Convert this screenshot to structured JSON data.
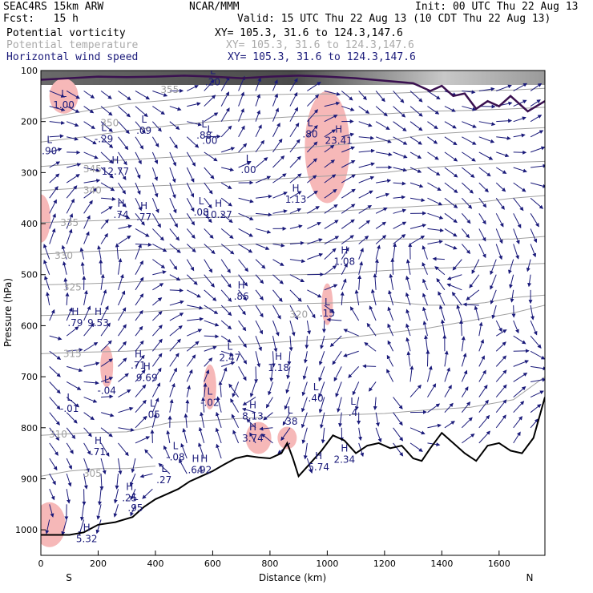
{
  "header": {
    "line1_left": "SEAC4RS 15km ARW",
    "line1_center": "NCAR/MMM",
    "line1_right": "Init: 00 UTC Thu 22 Aug 13",
    "line2_left": "Fcst:   15 h",
    "line2_right": "Valid: 15 UTC Thu 22 Aug 13 (10 CDT Thu 22 Aug 13)",
    "fields": [
      {
        "name": "Potential vorticity",
        "xy": "XY= 105.3, 31.6 to 124.3,147.6",
        "color": "#000000"
      },
      {
        "name": "Potential temperature",
        "xy": "XY= 105.3, 31.6 to 124.3,147.6",
        "color": "#aaaaaa"
      },
      {
        "name": "Horizontal wind speed",
        "xy": "XY= 105.3, 31.6 to 124.3,147.6",
        "color": "#1a1a7a"
      }
    ]
  },
  "chart_data": {
    "type": "cross-section",
    "xlabel": "Distance (km)",
    "ylabel": "Pressure (hPa)",
    "xlim": [
      0,
      1760
    ],
    "ylim": [
      1050,
      100
    ],
    "x_ticks": [
      0,
      200,
      400,
      600,
      800,
      1000,
      1200,
      1400,
      1600
    ],
    "y_ticks": [
      100,
      200,
      300,
      400,
      500,
      600,
      700,
      800,
      900,
      1000
    ],
    "end_labels": {
      "left": "S",
      "right": "N"
    },
    "grid": false,
    "colors": {
      "terrain": "#000000",
      "theta": "#a0a0a0",
      "wind": "#1a1a7a",
      "pv_fill": "#f6b8b8",
      "tropopause": "#3a1050"
    },
    "terrain": [
      [
        0,
        1010
      ],
      [
        100,
        1010
      ],
      [
        150,
        1005
      ],
      [
        200,
        990
      ],
      [
        260,
        985
      ],
      [
        320,
        975
      ],
      [
        360,
        955
      ],
      [
        400,
        940
      ],
      [
        440,
        930
      ],
      [
        480,
        920
      ],
      [
        520,
        905
      ],
      [
        560,
        895
      ],
      [
        600,
        885
      ],
      [
        640,
        872
      ],
      [
        680,
        860
      ],
      [
        720,
        855
      ],
      [
        760,
        858
      ],
      [
        800,
        860
      ],
      [
        840,
        850
      ],
      [
        860,
        830
      ],
      [
        880,
        860
      ],
      [
        900,
        895
      ],
      [
        940,
        870
      ],
      [
        980,
        845
      ],
      [
        1020,
        815
      ],
      [
        1060,
        825
      ],
      [
        1100,
        850
      ],
      [
        1140,
        835
      ],
      [
        1180,
        830
      ],
      [
        1220,
        840
      ],
      [
        1260,
        835
      ],
      [
        1300,
        860
      ],
      [
        1330,
        865
      ],
      [
        1360,
        840
      ],
      [
        1400,
        810
      ],
      [
        1440,
        830
      ],
      [
        1480,
        850
      ],
      [
        1520,
        865
      ],
      [
        1560,
        835
      ],
      [
        1600,
        830
      ],
      [
        1640,
        845
      ],
      [
        1680,
        850
      ],
      [
        1720,
        820
      ],
      [
        1760,
        740
      ]
    ],
    "theta_contours": [
      {
        "label": "305",
        "points": [
          [
            0,
            895
          ],
          [
            100,
            885
          ],
          [
            200,
            880
          ],
          [
            300,
            880
          ],
          [
            400,
            875
          ]
        ]
      },
      {
        "label": "310",
        "points": [
          [
            0,
            815
          ],
          [
            150,
            810
          ],
          [
            300,
            808
          ],
          [
            450,
            790
          ],
          [
            600,
            785
          ],
          [
            750,
            780
          ],
          [
            900,
            778
          ],
          [
            1050,
            775
          ],
          [
            1200,
            772
          ],
          [
            1350,
            765
          ],
          [
            1500,
            760
          ],
          [
            1650,
            745
          ],
          [
            1760,
            700
          ]
        ]
      },
      {
        "label": "315",
        "points": [
          [
            0,
            655
          ],
          [
            150,
            652
          ],
          [
            300,
            650
          ],
          [
            450,
            645
          ],
          [
            600,
            640
          ],
          [
            750,
            635
          ],
          [
            900,
            630
          ],
          [
            1050,
            625
          ],
          [
            1200,
            615
          ],
          [
            1350,
            605
          ],
          [
            1500,
            590
          ],
          [
            1650,
            575
          ],
          [
            1760,
            560
          ]
        ]
      },
      {
        "label": "320",
        "points": [
          [
            0,
            580
          ],
          [
            150,
            578
          ],
          [
            300,
            575
          ],
          [
            450,
            570
          ],
          [
            600,
            565
          ],
          [
            750,
            560
          ],
          [
            900,
            557
          ],
          [
            1050,
            555
          ],
          [
            1200,
            552
          ],
          [
            1350,
            560
          ],
          [
            1450,
            560
          ],
          [
            1550,
            555
          ],
          [
            1650,
            545
          ],
          [
            1760,
            540
          ]
        ]
      },
      {
        "label": "325",
        "points": [
          [
            0,
            520
          ],
          [
            150,
            518
          ],
          [
            300,
            515
          ],
          [
            450,
            510
          ],
          [
            600,
            505
          ],
          [
            750,
            502
          ],
          [
            900,
            500
          ],
          [
            1050,
            498
          ],
          [
            1200,
            492
          ],
          [
            1350,
            488
          ],
          [
            1500,
            485
          ],
          [
            1650,
            480
          ],
          [
            1760,
            478
          ]
        ]
      },
      {
        "label": "330",
        "points": [
          [
            0,
            460
          ],
          [
            150,
            455
          ],
          [
            300,
            452
          ],
          [
            450,
            450
          ],
          [
            600,
            445
          ],
          [
            750,
            440
          ],
          [
            900,
            438
          ],
          [
            1050,
            436
          ],
          [
            1200,
            430
          ],
          [
            1350,
            430
          ],
          [
            1500,
            432
          ],
          [
            1650,
            430
          ],
          [
            1760,
            425
          ]
        ]
      },
      {
        "label": "335",
        "points": [
          [
            0,
            398
          ],
          [
            150,
            395
          ],
          [
            300,
            392
          ],
          [
            450,
            390
          ],
          [
            600,
            388
          ],
          [
            750,
            385
          ],
          [
            900,
            380
          ],
          [
            1050,
            375
          ],
          [
            1200,
            370
          ],
          [
            1350,
            365
          ],
          [
            1500,
            360
          ],
          [
            1650,
            350
          ],
          [
            1760,
            345
          ]
        ]
      },
      {
        "label": "340",
        "points": [
          [
            0,
            335
          ],
          [
            150,
            330
          ],
          [
            300,
            328
          ],
          [
            450,
            325
          ],
          [
            600,
            320
          ],
          [
            750,
            315
          ],
          [
            900,
            310
          ],
          [
            1050,
            305
          ],
          [
            1200,
            300
          ],
          [
            1350,
            290
          ],
          [
            1500,
            285
          ],
          [
            1650,
            280
          ],
          [
            1760,
            278
          ]
        ]
      },
      {
        "label": "345",
        "points": [
          [
            0,
            288
          ],
          [
            150,
            282
          ],
          [
            300,
            275
          ],
          [
            450,
            270
          ],
          [
            600,
            265
          ],
          [
            750,
            258
          ],
          [
            900,
            252
          ],
          [
            1050,
            245
          ],
          [
            1200,
            238
          ],
          [
            1350,
            225
          ],
          [
            1500,
            220
          ],
          [
            1650,
            215
          ],
          [
            1760,
            212
          ]
        ]
      },
      {
        "label": "350",
        "points": [
          [
            0,
            240
          ],
          [
            150,
            230
          ],
          [
            300,
            218
          ],
          [
            450,
            208
          ],
          [
            600,
            200
          ],
          [
            750,
            195
          ],
          [
            900,
            190
          ],
          [
            1050,
            188
          ],
          [
            1200,
            185
          ],
          [
            1350,
            180
          ],
          [
            1500,
            178
          ],
          [
            1650,
            175
          ],
          [
            1760,
            172
          ]
        ]
      },
      {
        "label": "355",
        "points": [
          [
            0,
            195
          ],
          [
            150,
            180
          ],
          [
            300,
            165
          ],
          [
            450,
            158
          ],
          [
            600,
            150
          ],
          [
            750,
            148
          ],
          [
            900,
            146
          ],
          [
            1050,
            146
          ],
          [
            1200,
            145
          ],
          [
            1350,
            142
          ],
          [
            1500,
            140
          ],
          [
            1650,
            138
          ],
          [
            1760,
            135
          ]
        ]
      }
    ],
    "tropopause": [
      [
        0,
        118
      ],
      [
        100,
        115
      ],
      [
        200,
        112
      ],
      [
        300,
        113
      ],
      [
        400,
        112
      ],
      [
        500,
        110
      ],
      [
        600,
        112
      ],
      [
        700,
        115
      ],
      [
        800,
        112
      ],
      [
        900,
        110
      ],
      [
        1000,
        112
      ],
      [
        1100,
        115
      ],
      [
        1200,
        120
      ],
      [
        1300,
        125
      ],
      [
        1360,
        140
      ],
      [
        1400,
        130
      ],
      [
        1440,
        150
      ],
      [
        1480,
        145
      ],
      [
        1520,
        175
      ],
      [
        1560,
        160
      ],
      [
        1600,
        170
      ],
      [
        1640,
        150
      ],
      [
        1700,
        180
      ],
      [
        1760,
        160
      ]
    ],
    "highs_lows": [
      {
        "type": "L",
        "value": "1.00",
        "x": 80,
        "p": 155
      },
      {
        "type": "L",
        "value": ".90",
        "x": 30,
        "p": 245
      },
      {
        "type": "L",
        "value": "-.29",
        "x": 220,
        "p": 222
      },
      {
        "type": "L",
        "value": ".09",
        "x": 360,
        "p": 205
      },
      {
        "type": "L",
        "value": ".20",
        "x": 600,
        "p": 110
      },
      {
        "type": "L",
        "value": ".88",
        "x": 570,
        "p": 215
      },
      {
        "type": "L",
        "value": ".00",
        "x": 590,
        "p": 225
      },
      {
        "type": "L",
        "value": ".00",
        "x": 725,
        "p": 282
      },
      {
        "type": "L",
        "value": ".80",
        "x": 940,
        "p": 212
      },
      {
        "type": "L",
        "value": ".08",
        "x": 560,
        "p": 365
      },
      {
        "type": "L",
        "value": ".15",
        "x": 1000,
        "p": 563
      },
      {
        "type": "L",
        "value": "2.47",
        "x": 660,
        "p": 650
      },
      {
        "type": "L",
        "value": ".40",
        "x": 960,
        "p": 730
      },
      {
        "type": "L",
        "value": ".38",
        "x": 870,
        "p": 775
      },
      {
        "type": "L",
        "value": "-.04",
        "x": 230,
        "p": 715
      },
      {
        "type": "L",
        "value": "-.01",
        "x": 100,
        "p": 750
      },
      {
        "type": "L",
        "value": ".05",
        "x": 390,
        "p": 762
      },
      {
        "type": "L",
        "value": "-.02",
        "x": 590,
        "p": 738
      },
      {
        "type": "L",
        "value": "-.08",
        "x": 470,
        "p": 845
      },
      {
        "type": "L",
        "value": ".27",
        "x": 430,
        "p": 890
      },
      {
        "type": "L",
        "value": ".95",
        "x": 330,
        "p": 945
      },
      {
        "type": "L",
        "value": ".4",
        "x": 1090,
        "p": 758
      },
      {
        "type": "H",
        "value": "12.77",
        "x": 260,
        "p": 285
      },
      {
        "type": "H",
        "value": "23.41",
        "x": 1040,
        "p": 225
      },
      {
        "type": "H",
        "value": "1.13",
        "x": 890,
        "p": 340
      },
      {
        "type": "H",
        "value": ".74",
        "x": 280,
        "p": 370
      },
      {
        "type": "H",
        "value": ".77",
        "x": 360,
        "p": 375
      },
      {
        "type": "H",
        "value": "10.27",
        "x": 620,
        "p": 370
      },
      {
        "type": "H",
        "value": "1.08",
        "x": 1060,
        "p": 462
      },
      {
        "type": "H",
        "value": ".86",
        "x": 700,
        "p": 530
      },
      {
        "type": "H",
        "value": ".79",
        "x": 120,
        "p": 582
      },
      {
        "type": "H",
        "value": "9.53",
        "x": 200,
        "p": 582
      },
      {
        "type": "H",
        "value": ".71",
        "x": 340,
        "p": 665
      },
      {
        "type": "H",
        "value": "9.69",
        "x": 370,
        "p": 690
      },
      {
        "type": "H",
        "value": "1.18",
        "x": 830,
        "p": 670
      },
      {
        "type": "H",
        "value": "8.13",
        "x": 740,
        "p": 765
      },
      {
        "type": "H",
        "value": "3.74",
        "x": 740,
        "p": 808
      },
      {
        "type": "H",
        "value": ".71",
        "x": 200,
        "p": 835
      },
      {
        "type": "H",
        "value": ".64",
        "x": 540,
        "p": 870
      },
      {
        "type": "H",
        "value": ".92",
        "x": 570,
        "p": 870
      },
      {
        "type": "H",
        "value": "5.74",
        "x": 970,
        "p": 865
      },
      {
        "type": "H",
        "value": "2.34",
        "x": 1060,
        "p": 850
      },
      {
        "type": "H",
        "value": ".25",
        "x": 310,
        "p": 925
      },
      {
        "type": "H",
        "value": "5.32",
        "x": 160,
        "p": 1005
      }
    ],
    "pv_blobs": [
      {
        "x": 80,
        "p": 150,
        "rx": 18,
        "ry": 22
      },
      {
        "x": 1000,
        "p": 250,
        "rx": 28,
        "ry": 70
      },
      {
        "x": 1000,
        "p": 558,
        "rx": 7,
        "ry": 26
      },
      {
        "x": 230,
        "p": 680,
        "rx": 8,
        "ry": 26
      },
      {
        "x": 590,
        "p": 720,
        "rx": 8,
        "ry": 28
      },
      {
        "x": 0,
        "p": 390,
        "rx": 12,
        "ry": 30
      },
      {
        "x": 30,
        "p": 990,
        "rx": 20,
        "ry": 28
      },
      {
        "x": 760,
        "p": 820,
        "rx": 16,
        "ry": 20
      },
      {
        "x": 860,
        "p": 820,
        "rx": 12,
        "ry": 14
      }
    ],
    "theta_label_positions": [
      {
        "label": "305",
        "x": 180,
        "p": 890
      },
      {
        "label": "310",
        "x": 60,
        "p": 813
      },
      {
        "label": "315",
        "x": 110,
        "p": 655
      },
      {
        "label": "320",
        "x": 900,
        "p": 578
      },
      {
        "label": "325",
        "x": 110,
        "p": 525
      },
      {
        "label": "330",
        "x": 80,
        "p": 463
      },
      {
        "label": "335",
        "x": 100,
        "p": 398
      },
      {
        "label": "340",
        "x": 180,
        "p": 335
      },
      {
        "label": "345",
        "x": 180,
        "p": 293
      },
      {
        "label": "350",
        "x": 240,
        "p": 203
      },
      {
        "label": "355",
        "x": 450,
        "p": 138
      }
    ],
    "wind_vectors": true
  }
}
